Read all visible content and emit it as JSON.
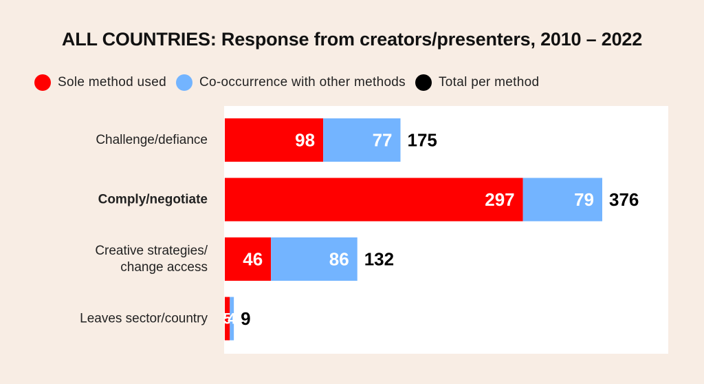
{
  "chart_data": {
    "type": "bar",
    "orientation": "horizontal",
    "stacked": true,
    "title": "ALL COUNTRIES: Response from creators/presenters, 2010 – 2022",
    "categories": [
      {
        "lines": [
          "Challenge/defiance"
        ],
        "bold": false
      },
      {
        "lines": [
          "Comply/negotiate"
        ],
        "bold": true
      },
      {
        "lines": [
          "Creative strategies/",
          "change access"
        ],
        "bold": false
      },
      {
        "lines": [
          "Leaves sector/country"
        ],
        "bold": false
      }
    ],
    "series": [
      {
        "name": "Sole method used",
        "color": "#ff0000",
        "values": [
          98,
          297,
          46,
          5
        ]
      },
      {
        "name": "Co-occurrence with other methods",
        "color": "#73b4ff",
        "values": [
          77,
          79,
          86,
          4
        ]
      }
    ],
    "totals": {
      "name": "Total per method",
      "color": "#000000",
      "values": [
        175,
        376,
        132,
        9
      ]
    },
    "xlim": [
      0,
      376
    ],
    "legend_position": "top-left",
    "grid": false
  }
}
